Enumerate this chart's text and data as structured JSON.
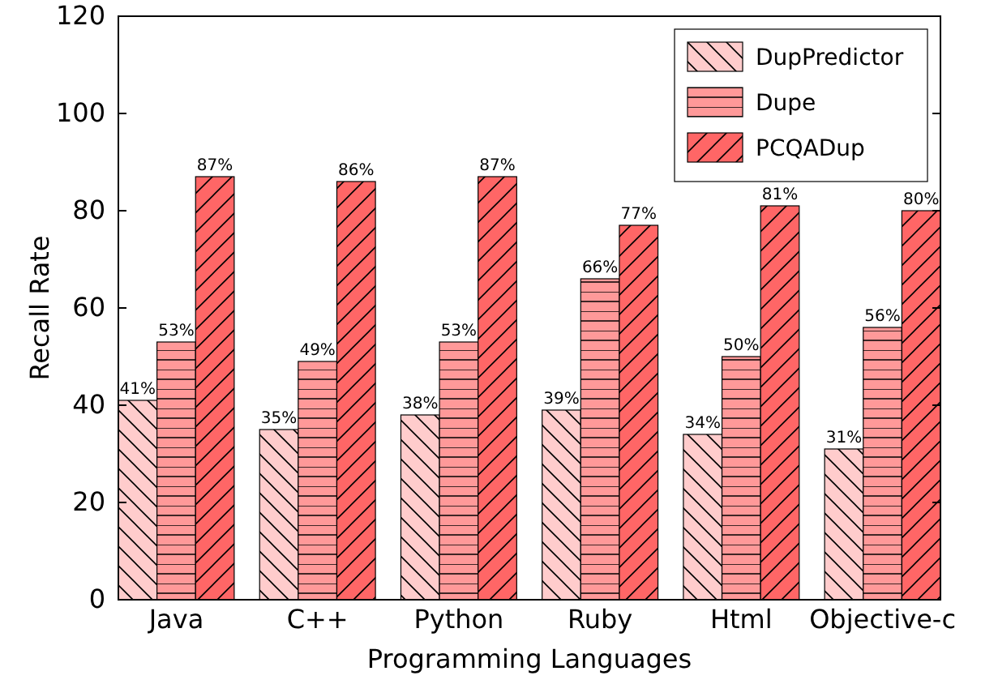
{
  "chart_data": {
    "type": "bar",
    "xlabel": "Programming Languages",
    "ylabel": "Recall Rate",
    "categories": [
      "Java",
      "C++",
      "Python",
      "Ruby",
      "Html",
      "Objective-c"
    ],
    "series": [
      {
        "name": "DupPredictor",
        "color": "#ffcccc",
        "values": [
          41,
          35,
          38,
          39,
          34,
          31
        ],
        "value_labels": [
          "41%",
          "35%",
          "38%",
          "39%",
          "34%",
          "31%"
        ]
      },
      {
        "name": "Dupe",
        "color": "#ff9999",
        "values": [
          53,
          49,
          53,
          66,
          50,
          56
        ],
        "value_labels": [
          "53%",
          "49%",
          "53%",
          "66%",
          "50%",
          "56%"
        ]
      },
      {
        "name": "PCQADup",
        "color": "#ff6666",
        "values": [
          87,
          86,
          87,
          77,
          81,
          80
        ],
        "value_labels": [
          "87%",
          "86%",
          "87%",
          "77%",
          "81%",
          "80%"
        ]
      }
    ],
    "ylim": [
      0,
      120
    ],
    "yticks": [
      0,
      20,
      40,
      60,
      80,
      100,
      120
    ],
    "grid": false,
    "legend": "top right"
  }
}
